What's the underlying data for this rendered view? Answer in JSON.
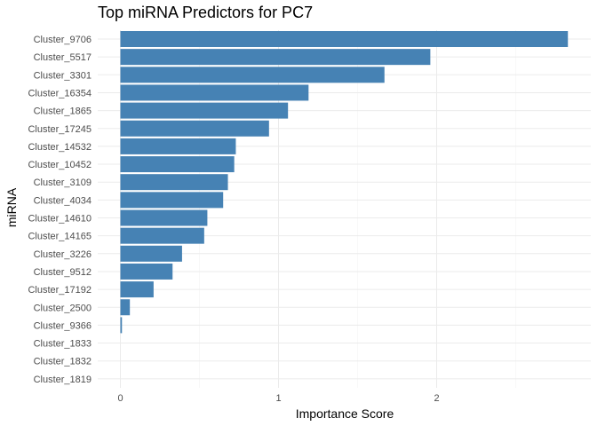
{
  "chart_data": {
    "type": "bar",
    "orientation": "horizontal",
    "title": "Top miRNA Predictors for PC7",
    "xlabel": "Importance Score",
    "ylabel": "miRNA",
    "xlim": [
      0,
      2.85
    ],
    "x_ticks": [
      "0",
      "1",
      "2"
    ],
    "x_tick_values": [
      0,
      1,
      2
    ],
    "grid": true,
    "legend": "none",
    "bar_color": "#4682b4",
    "categories": [
      "Cluster_9706",
      "Cluster_5517",
      "Cluster_3301",
      "Cluster_16354",
      "Cluster_1865",
      "Cluster_17245",
      "Cluster_14532",
      "Cluster_10452",
      "Cluster_3109",
      "Cluster_4034",
      "Cluster_14610",
      "Cluster_14165",
      "Cluster_3226",
      "Cluster_9512",
      "Cluster_17192",
      "Cluster_2500",
      "Cluster_9366",
      "Cluster_1833",
      "Cluster_1832",
      "Cluster_1819"
    ],
    "values": [
      2.83,
      1.96,
      1.67,
      1.19,
      1.06,
      0.94,
      0.73,
      0.72,
      0.68,
      0.65,
      0.55,
      0.53,
      0.39,
      0.33,
      0.21,
      0.06,
      0.01,
      0,
      0,
      0
    ]
  }
}
